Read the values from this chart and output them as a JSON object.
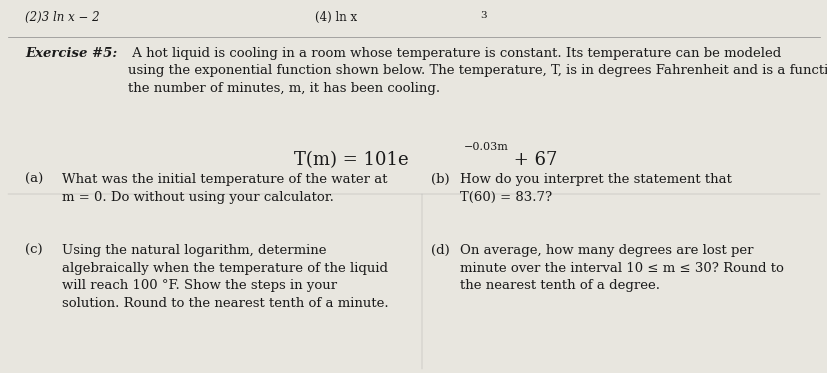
{
  "bg_color": "#d0cfc8",
  "paper_color": "#e8e6df",
  "exercise_label": "Exercise #5:",
  "exercise_intro": " A hot liquid is cooling in a room whose temperature is constant. Its temperature can be modeled\nusing the exponential function shown below. The temperature, T, is in degrees Fahrenheit and is a function of\nthe number of minutes, m, it has been cooling.",
  "formula_base": "T(m) = 101e",
  "formula_exp": "−0.03m",
  "formula_end": " + 67",
  "part_a_label": "(a)",
  "part_a_text": "What was the initial temperature of the water at\nm = 0. Do without using your calculator.",
  "part_b_label": "(b)",
  "part_b_text": "How do you interpret the statement that\nT(60) = 83.7?",
  "part_c_label": "(c)",
  "part_c_text": "Using the natural logarithm, determine\nalgebraically when the temperature of the liquid\nwill reach 100 °F. Show the steps in your\nsolution. Round to the nearest tenth of a minute.",
  "part_d_label": "(d)",
  "part_d_text": "On average, how many degrees are lost per\nminute over the interval 10 ≤ m ≤ 30? Round to\nthe nearest tenth of a degree.",
  "font_size_body": 9.5,
  "font_size_formula": 12,
  "font_size_header": 8.5,
  "text_color": "#1a1a1a"
}
